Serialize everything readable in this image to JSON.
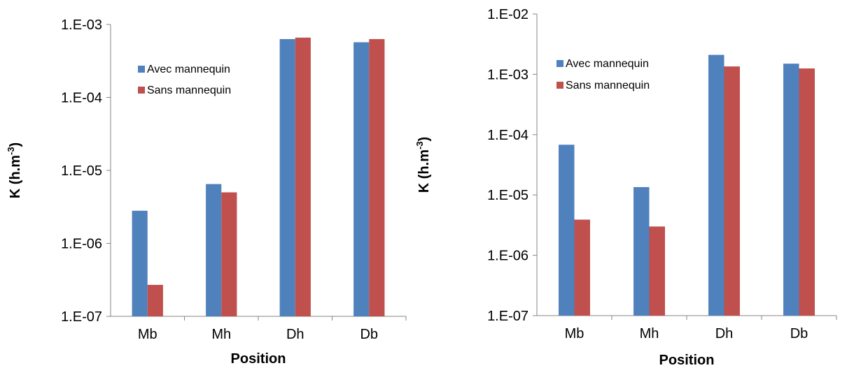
{
  "chart_data": [
    {
      "type": "bar",
      "scale": "log",
      "title": "",
      "xlabel": "Position",
      "ylabel": "K (h.m",
      "ylabel_sup": "-3",
      "ylabel_close": ")",
      "ylim": [
        1e-07,
        0.001
      ],
      "y_ticks": [
        1e-07,
        1e-06,
        1e-05,
        0.0001,
        0.001
      ],
      "y_tick_labels": [
        "1.E-07",
        "1.E-06",
        "1.E-05",
        "1.E-04",
        "1.E-03"
      ],
      "categories": [
        "Mb",
        "Mh",
        "Dh",
        "Db"
      ],
      "legend_position": "upper-left inside plot",
      "grid": false,
      "series": [
        {
          "name": "Avec mannequin",
          "color": "#4f81bd",
          "values": [
            2.8e-06,
            6.5e-06,
            0.00063,
            0.00057
          ]
        },
        {
          "name": "Sans mannequin",
          "color": "#c0504d",
          "values": [
            2.7e-07,
            5e-06,
            0.00066,
            0.00063
          ]
        }
      ]
    },
    {
      "type": "bar",
      "scale": "log",
      "title": "",
      "xlabel": "Position",
      "ylabel": "K (h.m",
      "ylabel_sup": "-3",
      "ylabel_close": ")",
      "ylim": [
        1e-07,
        0.01
      ],
      "y_ticks": [
        1e-07,
        1e-06,
        1e-05,
        0.0001,
        0.001,
        0.01
      ],
      "y_tick_labels": [
        "1.E-07",
        "1.E-06",
        "1.E-05",
        "1.E-04",
        "1.E-03",
        "1.E-02"
      ],
      "categories": [
        "Mb",
        "Mh",
        "Dh",
        "Db"
      ],
      "legend_position": "upper-left inside plot",
      "grid": false,
      "series": [
        {
          "name": "Avec mannequin",
          "color": "#4f81bd",
          "values": [
            6.8e-05,
            1.35e-05,
            0.0021,
            0.0015
          ]
        },
        {
          "name": "Sans mannequin",
          "color": "#c0504d",
          "values": [
            3.9e-06,
            3e-06,
            0.00135,
            0.00125
          ]
        }
      ]
    }
  ]
}
